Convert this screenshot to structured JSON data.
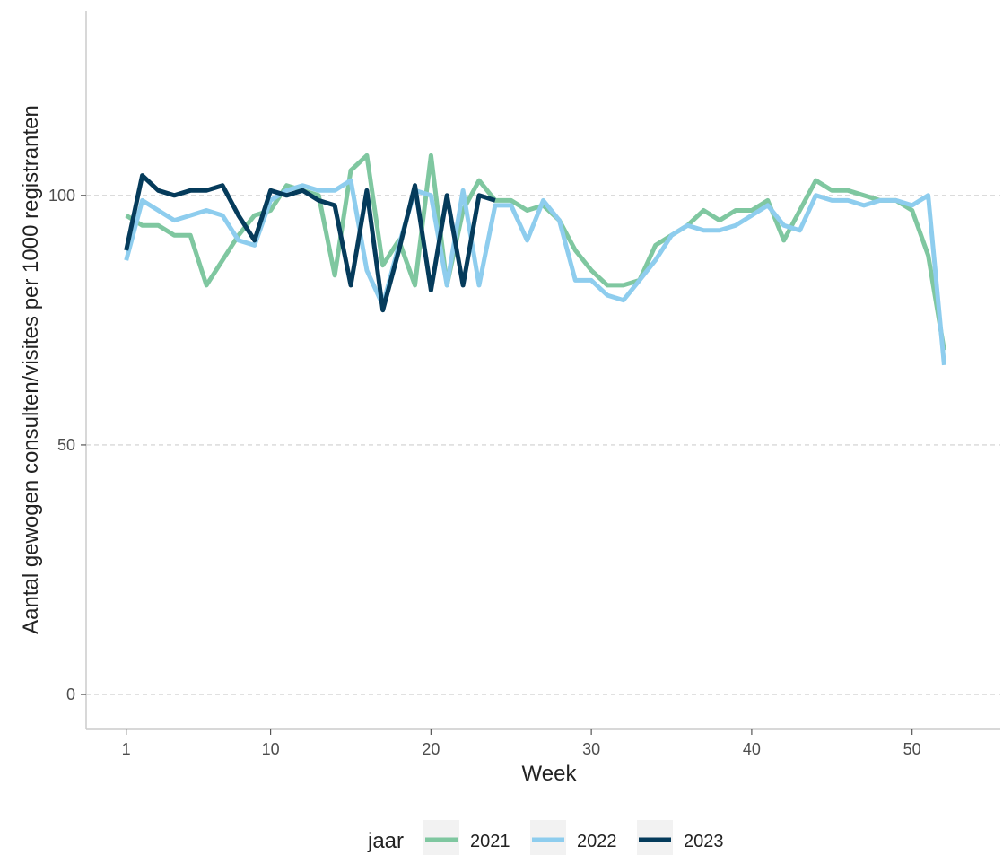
{
  "chart_data": {
    "type": "line",
    "xlabel": "Week",
    "ylabel": "Aantal gewogen consulten/visites per 1000 registranten",
    "xlim": [
      -1.5,
      55.5
    ],
    "ylim": [
      -7,
      137
    ],
    "x_ticks": [
      1,
      10,
      20,
      30,
      40,
      50
    ],
    "y_ticks": [
      0,
      50,
      100
    ],
    "grid": "horizontal-dashed",
    "legend": {
      "title": "jaar",
      "position": "bottom"
    },
    "series": [
      {
        "name": "2021",
        "color": "#7fc7a0",
        "x": [
          1,
          2,
          3,
          4,
          5,
          6,
          7,
          8,
          9,
          10,
          11,
          12,
          13,
          14,
          15,
          16,
          17,
          18,
          19,
          20,
          21,
          22,
          23,
          24,
          25,
          26,
          27,
          28,
          29,
          30,
          31,
          32,
          33,
          34,
          35,
          36,
          37,
          38,
          39,
          40,
          41,
          42,
          43,
          44,
          45,
          46,
          47,
          48,
          49,
          50,
          51,
          52
        ],
        "values": [
          96,
          94,
          94,
          92,
          92,
          82,
          87,
          92,
          96,
          97,
          102,
          101,
          100,
          84,
          105,
          108,
          86,
          91,
          82,
          108,
          82,
          97,
          103,
          99,
          99,
          97,
          98,
          95,
          89,
          85,
          82,
          82,
          83,
          90,
          92,
          94,
          97,
          95,
          97,
          97,
          99,
          91,
          97,
          103,
          101,
          101,
          100,
          99,
          99,
          97,
          88,
          69
        ]
      },
      {
        "name": "2022",
        "color": "#8ecdee",
        "x": [
          1,
          2,
          3,
          4,
          5,
          6,
          7,
          8,
          9,
          10,
          11,
          12,
          13,
          14,
          15,
          16,
          17,
          18,
          19,
          20,
          21,
          22,
          23,
          24,
          25,
          26,
          27,
          28,
          29,
          30,
          31,
          32,
          33,
          34,
          35,
          36,
          37,
          38,
          39,
          40,
          41,
          42,
          43,
          44,
          45,
          46,
          47,
          48,
          49,
          50,
          51,
          52
        ],
        "values": [
          87,
          99,
          97,
          95,
          96,
          97,
          96,
          91,
          90,
          99,
          101,
          102,
          101,
          101,
          103,
          85,
          78,
          90,
          101,
          100,
          82,
          101,
          82,
          98,
          98,
          91,
          99,
          95,
          83,
          83,
          80,
          79,
          83,
          87,
          92,
          94,
          93,
          93,
          94,
          96,
          98,
          94,
          93,
          100,
          99,
          99,
          98,
          99,
          99,
          98,
          100,
          66
        ]
      },
      {
        "name": "2023",
        "color": "#053b5b",
        "x": [
          1,
          2,
          3,
          4,
          5,
          6,
          7,
          8,
          9,
          10,
          11,
          12,
          13,
          14,
          15,
          16,
          17,
          18,
          19,
          20,
          21,
          22,
          23,
          24
        ],
        "values": [
          89,
          104,
          101,
          100,
          101,
          101,
          102,
          96,
          91,
          101,
          100,
          101,
          99,
          98,
          82,
          101,
          77,
          89,
          102,
          81,
          100,
          82,
          100,
          99
        ]
      }
    ]
  }
}
